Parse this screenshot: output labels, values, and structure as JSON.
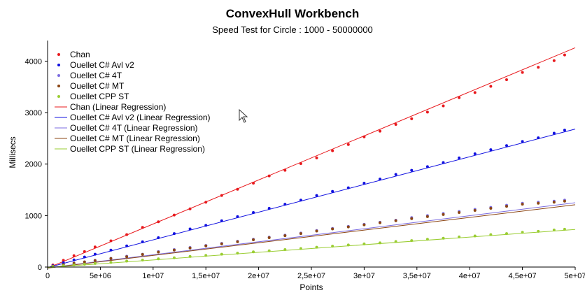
{
  "chart_data": {
    "type": "scatter",
    "title": "ConvexHull Workbench",
    "subtitle": "Speed Test for Circle : 1000 - 50000000",
    "xlabel": "Points",
    "ylabel": "Millisecs",
    "xlim": [
      0,
      50000000
    ],
    "ylim": [
      0,
      4400
    ],
    "x_ticks": [
      0,
      5000000,
      10000000,
      15000000,
      20000000,
      25000000,
      30000000,
      35000000,
      40000000,
      45000000,
      50000000
    ],
    "x_tick_labels": [
      "0",
      "5e+06",
      "1e+07",
      "1,5e+07",
      "2e+07",
      "2,5e+07",
      "3e+07",
      "3,5e+07",
      "4e+07",
      "4,5e+07",
      "5e+07"
    ],
    "y_ticks": [
      0,
      1000,
      2000,
      3000,
      4000
    ],
    "y_tick_labels": [
      "0",
      "1000",
      "2000",
      "3000",
      "4000"
    ],
    "legend_position": "top-left",
    "x_samples": [
      500000,
      1500000,
      2500000,
      3500000,
      4500000,
      6000000,
      7500000,
      9000000,
      10500000,
      12000000,
      13500000,
      15000000,
      16500000,
      18000000,
      19500000,
      21000000,
      22500000,
      24000000,
      25500000,
      27000000,
      28500000,
      30000000,
      31500000,
      33000000,
      34500000,
      36000000,
      37500000,
      39000000,
      40500000,
      42000000,
      43500000,
      45000000,
      46500000,
      48000000,
      49000000
    ],
    "series": [
      {
        "name": "Chan",
        "color": "#e8181c",
        "values": [
          40,
          130,
          220,
          300,
          390,
          510,
          630,
          770,
          880,
          1010,
          1130,
          1260,
          1390,
          1510,
          1630,
          1770,
          1880,
          2010,
          2120,
          2260,
          2380,
          2530,
          2640,
          2770,
          2880,
          3010,
          3130,
          3290,
          3390,
          3510,
          3640,
          3780,
          3880,
          4010,
          4120
        ]
      },
      {
        "name": "Ouellet C# Avl v2",
        "color": "#1010e0",
        "values": [
          25,
          85,
          140,
          195,
          250,
          330,
          410,
          490,
          570,
          650,
          740,
          810,
          900,
          980,
          1060,
          1140,
          1220,
          1300,
          1390,
          1470,
          1540,
          1630,
          1710,
          1800,
          1880,
          1950,
          2030,
          2120,
          2200,
          2280,
          2360,
          2440,
          2510,
          2600,
          2660
        ]
      },
      {
        "name": "Ouellet C# 4T",
        "color": "#7b6be0",
        "values": [
          15,
          45,
          75,
          100,
          130,
          170,
          210,
          250,
          300,
          340,
          380,
          420,
          460,
          500,
          540,
          580,
          620,
          660,
          710,
          750,
          790,
          830,
          870,
          910,
          960,
          1000,
          1040,
          1080,
          1120,
          1160,
          1200,
          1240,
          1260,
          1280,
          1300
        ]
      },
      {
        "name": "Ouellet C# MT",
        "color": "#8b4513",
        "values": [
          15,
          45,
          75,
          100,
          125,
          165,
          200,
          245,
          290,
          330,
          370,
          410,
          450,
          490,
          530,
          570,
          610,
          650,
          700,
          740,
          780,
          820,
          860,
          900,
          940,
          980,
          1020,
          1060,
          1100,
          1140,
          1180,
          1220,
          1240,
          1260,
          1280
        ]
      },
      {
        "name": "Ouellet CPP ST",
        "color": "#9acd32",
        "values": [
          10,
          25,
          40,
          55,
          70,
          90,
          115,
          135,
          160,
          180,
          205,
          225,
          250,
          270,
          295,
          315,
          340,
          360,
          385,
          405,
          430,
          450,
          470,
          495,
          515,
          540,
          560,
          585,
          605,
          630,
          650,
          675,
          695,
          720,
          735
        ]
      }
    ],
    "regressions": [
      {
        "name": "Chan (Linear Regression)",
        "color": "#e8181c",
        "start": [
          0,
          -20
        ],
        "end": [
          50000000,
          4260
        ]
      },
      {
        "name": "Ouellet C# Avl v2 (Linear Regression)",
        "color": "#1010e0",
        "start": [
          0,
          -10
        ],
        "end": [
          50000000,
          2680
        ]
      },
      {
        "name": "Ouellet C# 4T (Linear Regression)",
        "color": "#7b6be0",
        "start": [
          0,
          -15
        ],
        "end": [
          50000000,
          1250
        ]
      },
      {
        "name": "Ouellet C# MT (Linear Regression)",
        "color": "#8b4513",
        "start": [
          0,
          -20
        ],
        "end": [
          50000000,
          1210
        ]
      },
      {
        "name": "Ouellet CPP ST (Linear Regression)",
        "color": "#9acd32",
        "start": [
          0,
          -10
        ],
        "end": [
          50000000,
          730
        ]
      }
    ],
    "legend": [
      {
        "label": "Chan",
        "kind": "point",
        "color": "#e8181c"
      },
      {
        "label": "Ouellet C# Avl v2",
        "kind": "point",
        "color": "#1010e0"
      },
      {
        "label": "Ouellet C# 4T",
        "kind": "point",
        "color": "#7b6be0"
      },
      {
        "label": "Ouellet C# MT",
        "kind": "point",
        "color": "#8b4513"
      },
      {
        "label": "Ouellet CPP ST",
        "kind": "point",
        "color": "#9acd32"
      },
      {
        "label": "Chan (Linear Regression)",
        "kind": "line",
        "color": "#e8181c"
      },
      {
        "label": "Ouellet C# Avl v2 (Linear Regression)",
        "kind": "line",
        "color": "#1010e0"
      },
      {
        "label": "Ouellet C# 4T (Linear Regression)",
        "kind": "line",
        "color": "#7b6be0"
      },
      {
        "label": "Ouellet C# MT (Linear Regression)",
        "kind": "line",
        "color": "#8b4513"
      },
      {
        "label": "Ouellet CPP ST (Linear Regression)",
        "kind": "line",
        "color": "#9acd32"
      }
    ]
  }
}
